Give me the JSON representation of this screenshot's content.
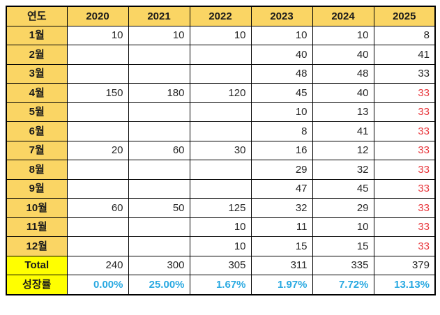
{
  "colors": {
    "header_bg": "#fad564",
    "month_label_bg": "#fad564",
    "summary_label_bg": "#ffff00",
    "border": "#000000",
    "value_text": "#262626",
    "alert_value_text": "#e8383d",
    "growth_value_text": "#29a9e1",
    "background": "#ffffff"
  },
  "chart_data": {
    "type": "table",
    "corner_label": "연도",
    "columns": [
      "2020",
      "2021",
      "2022",
      "2023",
      "2024",
      "2025"
    ],
    "rows": [
      {
        "label": "1월",
        "cells": [
          {
            "v": "10"
          },
          {
            "v": "10"
          },
          {
            "v": "10"
          },
          {
            "v": "10"
          },
          {
            "v": "10"
          },
          {
            "v": "8"
          }
        ]
      },
      {
        "label": "2월",
        "cells": [
          {
            "v": ""
          },
          {
            "v": ""
          },
          {
            "v": ""
          },
          {
            "v": "40"
          },
          {
            "v": "40"
          },
          {
            "v": "41"
          }
        ]
      },
      {
        "label": "3월",
        "cells": [
          {
            "v": ""
          },
          {
            "v": ""
          },
          {
            "v": ""
          },
          {
            "v": "48"
          },
          {
            "v": "48"
          },
          {
            "v": "33"
          }
        ]
      },
      {
        "label": "4월",
        "cells": [
          {
            "v": "150"
          },
          {
            "v": "180"
          },
          {
            "v": "120"
          },
          {
            "v": "45"
          },
          {
            "v": "40"
          },
          {
            "v": "33",
            "red": true
          }
        ]
      },
      {
        "label": "5월",
        "cells": [
          {
            "v": ""
          },
          {
            "v": ""
          },
          {
            "v": ""
          },
          {
            "v": "10"
          },
          {
            "v": "13"
          },
          {
            "v": "33",
            "red": true
          }
        ]
      },
      {
        "label": "6월",
        "cells": [
          {
            "v": ""
          },
          {
            "v": ""
          },
          {
            "v": ""
          },
          {
            "v": "8"
          },
          {
            "v": "41"
          },
          {
            "v": "33",
            "red": true
          }
        ]
      },
      {
        "label": "7월",
        "cells": [
          {
            "v": "20"
          },
          {
            "v": "60"
          },
          {
            "v": "30"
          },
          {
            "v": "16"
          },
          {
            "v": "12"
          },
          {
            "v": "33",
            "red": true
          }
        ]
      },
      {
        "label": "8월",
        "cells": [
          {
            "v": ""
          },
          {
            "v": ""
          },
          {
            "v": ""
          },
          {
            "v": "29"
          },
          {
            "v": "32"
          },
          {
            "v": "33",
            "red": true
          }
        ]
      },
      {
        "label": "9월",
        "cells": [
          {
            "v": ""
          },
          {
            "v": ""
          },
          {
            "v": ""
          },
          {
            "v": "47"
          },
          {
            "v": "45"
          },
          {
            "v": "33",
            "red": true
          }
        ]
      },
      {
        "label": "10월",
        "cells": [
          {
            "v": "60"
          },
          {
            "v": "50"
          },
          {
            "v": "125"
          },
          {
            "v": "32"
          },
          {
            "v": "29"
          },
          {
            "v": "33",
            "red": true
          }
        ]
      },
      {
        "label": "11월",
        "cells": [
          {
            "v": ""
          },
          {
            "v": ""
          },
          {
            "v": "10"
          },
          {
            "v": "11"
          },
          {
            "v": "10"
          },
          {
            "v": "33",
            "red": true
          }
        ]
      },
      {
        "label": "12월",
        "cells": [
          {
            "v": ""
          },
          {
            "v": ""
          },
          {
            "v": "10"
          },
          {
            "v": "15"
          },
          {
            "v": "15"
          },
          {
            "v": "33",
            "red": true
          }
        ]
      }
    ],
    "total_row": {
      "label": "Total",
      "values": [
        "240",
        "300",
        "305",
        "311",
        "335",
        "379"
      ]
    },
    "growth_row": {
      "label": "성장률",
      "values": [
        "0.00%",
        "25.00%",
        "1.67%",
        "1.97%",
        "7.72%",
        "13.13%"
      ]
    }
  }
}
